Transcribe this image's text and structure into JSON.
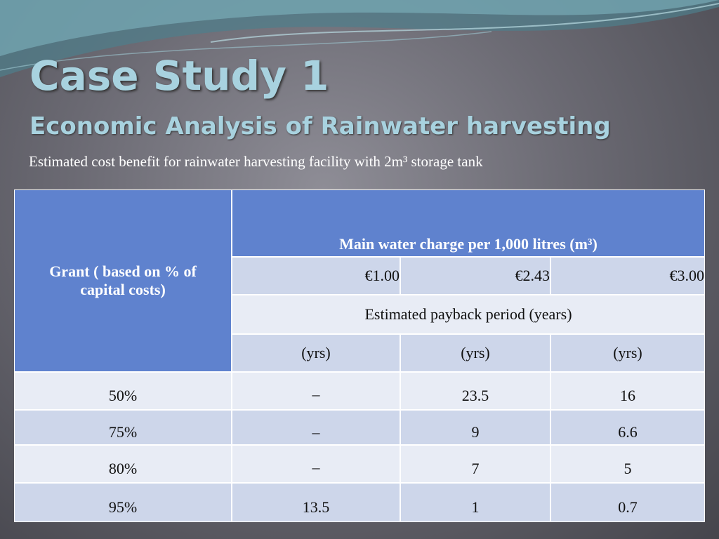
{
  "header": {
    "title": "Case Study 1",
    "subtitle": "Economic Analysis of Rainwater harvesting",
    "caption": "Estimated cost benefit for rainwater harvesting facility with 2m³ storage tank"
  },
  "table": {
    "row_header": "Grant ( based on % of capital costs)",
    "group_header": "Main water charge per 1,000 litres (m³)",
    "prices": [
      "€1.00",
      "€2.43",
      "€3.00"
    ],
    "subheader": "Estimated payback period (years)",
    "units": [
      "(yrs)",
      "(yrs)",
      "(yrs)"
    ],
    "rows": [
      [
        "50%",
        "–",
        "23.5",
        "16"
      ],
      [
        "75%",
        "–",
        "9",
        "6.6"
      ],
      [
        "80%",
        "–",
        "7",
        "5"
      ],
      [
        "95%",
        "13.5",
        "1",
        "0.7"
      ]
    ]
  }
}
